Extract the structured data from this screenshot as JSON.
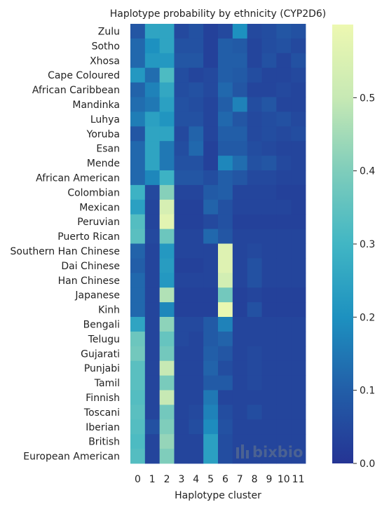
{
  "chart_data": {
    "type": "heatmap",
    "title": "Haplotype probability by ethnicity (CYP2D6)",
    "xlabel": "Haplotype cluster",
    "ylabel": "",
    "x_categories": [
      "0",
      "1",
      "2",
      "3",
      "4",
      "5",
      "6",
      "7",
      "8",
      "9",
      "10",
      "11"
    ],
    "y_categories": [
      "Zulu",
      "Sotho",
      "Xhosa",
      "Cape Coloured",
      "African Caribbean",
      "Mandinka",
      "Luhya",
      "Yoruba",
      "Esan",
      "Mende",
      "African American",
      "Colombian",
      "Mexican",
      "Peruvian",
      "Puerto Rican",
      "Southern Han Chinese",
      "Dai Chinese",
      "Han Chinese",
      "Japanese",
      "Kinh",
      "Bengali",
      "Telugu",
      "Gujarati",
      "Punjabi",
      "Tamil",
      "Finnish",
      "Toscani",
      "Iberian",
      "British",
      "European American"
    ],
    "values": [
      [
        0.08,
        0.25,
        0.25,
        0.05,
        0.07,
        0.03,
        0.05,
        0.2,
        0.05,
        0.06,
        0.08,
        0.07
      ],
      [
        0.12,
        0.2,
        0.25,
        0.07,
        0.07,
        0.03,
        0.1,
        0.09,
        0.04,
        0.06,
        0.07,
        0.05
      ],
      [
        0.12,
        0.22,
        0.22,
        0.08,
        0.08,
        0.03,
        0.1,
        0.1,
        0.04,
        0.07,
        0.04,
        0.07
      ],
      [
        0.22,
        0.13,
        0.32,
        0.06,
        0.04,
        0.05,
        0.1,
        0.09,
        0.06,
        0.04,
        0.04,
        0.05
      ],
      [
        0.11,
        0.17,
        0.26,
        0.06,
        0.07,
        0.05,
        0.12,
        0.08,
        0.04,
        0.04,
        0.05,
        0.04
      ],
      [
        0.13,
        0.15,
        0.24,
        0.07,
        0.06,
        0.04,
        0.1,
        0.17,
        0.06,
        0.08,
        0.04,
        0.04
      ],
      [
        0.16,
        0.24,
        0.21,
        0.07,
        0.07,
        0.04,
        0.12,
        0.08,
        0.05,
        0.06,
        0.07,
        0.05
      ],
      [
        0.08,
        0.25,
        0.25,
        0.05,
        0.11,
        0.04,
        0.1,
        0.1,
        0.05,
        0.06,
        0.05,
        0.06
      ],
      [
        0.12,
        0.25,
        0.15,
        0.06,
        0.12,
        0.03,
        0.09,
        0.09,
        0.06,
        0.05,
        0.04,
        0.04
      ],
      [
        0.12,
        0.25,
        0.15,
        0.07,
        0.07,
        0.03,
        0.18,
        0.13,
        0.07,
        0.08,
        0.05,
        0.04
      ],
      [
        0.12,
        0.18,
        0.29,
        0.08,
        0.08,
        0.06,
        0.1,
        0.08,
        0.05,
        0.05,
        0.04,
        0.04
      ],
      [
        0.29,
        0.05,
        0.41,
        0.04,
        0.04,
        0.09,
        0.1,
        0.04,
        0.04,
        0.04,
        0.03,
        0.03
      ],
      [
        0.24,
        0.04,
        0.54,
        0.03,
        0.03,
        0.11,
        0.07,
        0.04,
        0.04,
        0.04,
        0.04,
        0.03
      ],
      [
        0.33,
        0.04,
        0.57,
        0.03,
        0.03,
        0.05,
        0.07,
        0.03,
        0.03,
        0.03,
        0.03,
        0.03
      ],
      [
        0.34,
        0.05,
        0.37,
        0.04,
        0.04,
        0.12,
        0.08,
        0.04,
        0.04,
        0.04,
        0.04,
        0.04
      ],
      [
        0.11,
        0.04,
        0.22,
        0.04,
        0.04,
        0.04,
        0.56,
        0.04,
        0.05,
        0.04,
        0.04,
        0.04
      ],
      [
        0.1,
        0.04,
        0.23,
        0.03,
        0.03,
        0.04,
        0.56,
        0.04,
        0.07,
        0.04,
        0.04,
        0.04
      ],
      [
        0.12,
        0.04,
        0.22,
        0.04,
        0.04,
        0.04,
        0.53,
        0.04,
        0.07,
        0.04,
        0.04,
        0.04
      ],
      [
        0.12,
        0.04,
        0.47,
        0.03,
        0.03,
        0.03,
        0.38,
        0.03,
        0.04,
        0.03,
        0.03,
        0.03
      ],
      [
        0.12,
        0.04,
        0.18,
        0.03,
        0.03,
        0.03,
        0.59,
        0.03,
        0.07,
        0.03,
        0.03,
        0.03
      ],
      [
        0.25,
        0.04,
        0.42,
        0.05,
        0.05,
        0.09,
        0.17,
        0.04,
        0.04,
        0.04,
        0.04,
        0.04
      ],
      [
        0.37,
        0.04,
        0.36,
        0.05,
        0.04,
        0.09,
        0.11,
        0.04,
        0.04,
        0.04,
        0.04,
        0.04
      ],
      [
        0.38,
        0.04,
        0.38,
        0.04,
        0.04,
        0.1,
        0.08,
        0.04,
        0.05,
        0.04,
        0.04,
        0.04
      ],
      [
        0.34,
        0.04,
        0.5,
        0.04,
        0.04,
        0.11,
        0.06,
        0.04,
        0.05,
        0.04,
        0.04,
        0.04
      ],
      [
        0.34,
        0.04,
        0.39,
        0.04,
        0.04,
        0.09,
        0.09,
        0.04,
        0.05,
        0.04,
        0.04,
        0.04
      ],
      [
        0.33,
        0.04,
        0.5,
        0.04,
        0.04,
        0.15,
        0.04,
        0.04,
        0.04,
        0.04,
        0.04,
        0.04
      ],
      [
        0.34,
        0.04,
        0.38,
        0.04,
        0.05,
        0.17,
        0.06,
        0.04,
        0.06,
        0.04,
        0.04,
        0.04
      ],
      [
        0.33,
        0.07,
        0.4,
        0.04,
        0.06,
        0.19,
        0.07,
        0.04,
        0.04,
        0.04,
        0.04,
        0.04
      ],
      [
        0.32,
        0.04,
        0.43,
        0.04,
        0.04,
        0.24,
        0.06,
        0.04,
        0.04,
        0.04,
        0.04,
        0.04
      ],
      [
        0.33,
        0.04,
        0.4,
        0.04,
        0.04,
        0.24,
        0.06,
        0.04,
        0.04,
        0.04,
        0.04,
        0.04
      ]
    ],
    "colorbar": {
      "min": 0.0,
      "max": 0.6,
      "ticks": [
        "0.0",
        "0.1",
        "0.2",
        "0.3",
        "0.4",
        "0.5"
      ],
      "colormap": "YlGnBu",
      "colors": [
        "#253494",
        "#225ea8",
        "#1d91c0",
        "#41b6c4",
        "#7fcdbb",
        "#c7e9b4",
        "#edf8b1"
      ]
    },
    "watermark": "bixbio",
    "watermark_icon": "bar-chart-logo-icon"
  }
}
